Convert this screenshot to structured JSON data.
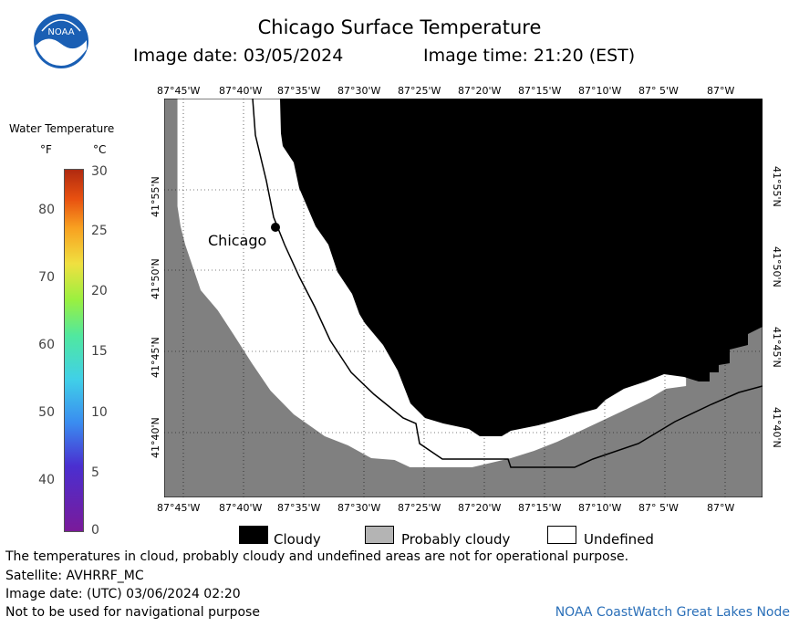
{
  "header": {
    "title": "Chicago Surface Temperature",
    "image_date": "Image date: 03/05/2024",
    "image_time": "Image time: 21:20 (EST)"
  },
  "logo": {
    "text": "NOAA",
    "icon": "noaa-logo-icon"
  },
  "colorbar": {
    "title": "Water Temperature",
    "unit_f": "°F",
    "unit_c": "°C",
    "f_ticks": [
      "80",
      "70",
      "60",
      "50",
      "40"
    ],
    "c_ticks": [
      "30",
      "25",
      "20",
      "15",
      "10",
      "5",
      "0"
    ]
  },
  "map": {
    "lon_labels": [
      "87°45'W",
      "87°40'W",
      "87°35'W",
      "87°30'W",
      "87°25'W",
      "87°20'W",
      "87°15'W",
      "87°10'W",
      "87° 5'W",
      "87°W"
    ],
    "lat_labels": [
      "41°55'N",
      "41°50'N",
      "41°45'N",
      "41°40'N"
    ],
    "city_label": "Chicago",
    "colors": {
      "land": "#808080",
      "cloudy": "#000000",
      "undefined": "#ffffff",
      "probably_cloudy": "#b4b4b4"
    }
  },
  "legend": {
    "cloudy": "Cloudy",
    "probably_cloudy": "Probably cloudy",
    "undefined": "Undefined"
  },
  "footer": {
    "disclaimer": "The temperatures in cloud, probably cloudy and undefined areas are not for operational purpose.",
    "satellite": "Satellite: AVHRRF_MC",
    "utc_date": "Image date: (UTC) 03/06/2024  02:20",
    "nav_warning": "Not to be used for navigational purpose",
    "credit": "NOAA CoastWatch Great Lakes Node"
  }
}
